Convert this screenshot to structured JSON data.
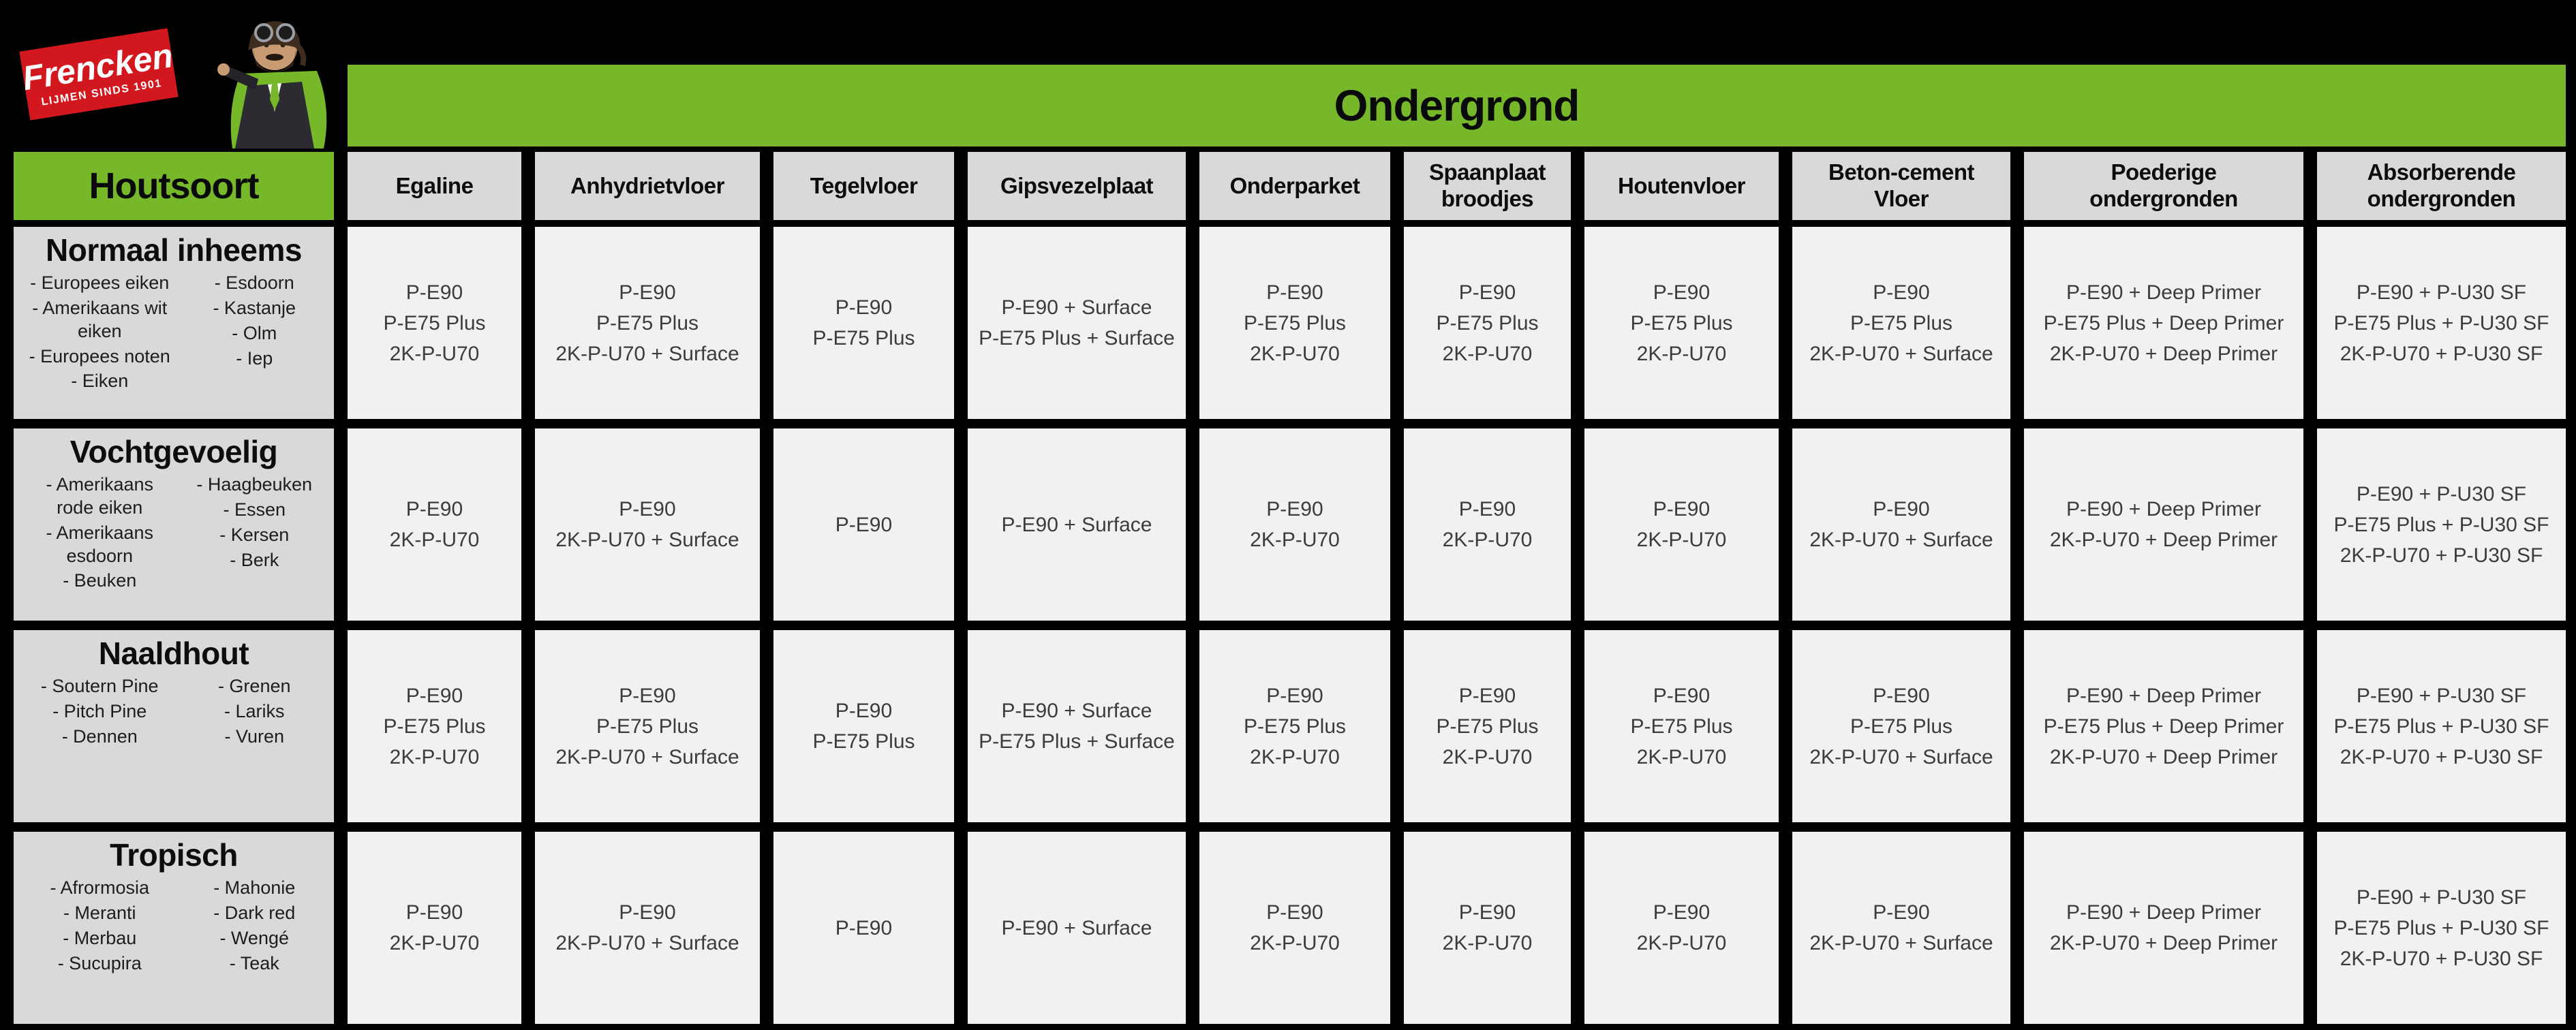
{
  "brand": {
    "logo_text": "Frencken",
    "logo_tagline": "LIJMEN SINDS 1901"
  },
  "header": {
    "ondergrond_title": "Ondergrond",
    "houtsoort_title": "Houtsoort"
  },
  "colors": {
    "green": "#76b82a",
    "logo_red": "#d2181e",
    "header_gray": "#d9d9d9",
    "cell_gray": "#f1f1f1",
    "background": "#000000"
  },
  "columns": [
    "Egaline",
    "Anhydrietvloer",
    "Tegelvloer",
    "Gipsvezelplaat",
    "Onderparket",
    "Spaanplaat\nbroodjes",
    "Houtenvloer",
    "Beton-cement\nVloer",
    "Poederige\nondergronden",
    "Absorberende\nondergronden"
  ],
  "rows": [
    {
      "category": "Normaal inheems",
      "woods_left": [
        "- Europees eiken",
        "- Amerikaans wit\neiken",
        "- Europees noten",
        "- Eiken"
      ],
      "woods_right": [
        "- Esdoorn",
        "- Kastanje",
        "- Olm",
        "- Iep"
      ],
      "cells": [
        [
          "P-E90",
          "P-E75 Plus",
          "2K-P-U70"
        ],
        [
          "P-E90",
          "P-E75 Plus",
          "2K-P-U70 + Surface"
        ],
        [
          "P-E90",
          "P-E75 Plus"
        ],
        [
          "P-E90 + Surface",
          "P-E75 Plus + Surface"
        ],
        [
          "P-E90",
          "P-E75 Plus",
          "2K-P-U70"
        ],
        [
          "P-E90",
          "P-E75 Plus",
          "2K-P-U70"
        ],
        [
          "P-E90",
          "P-E75 Plus",
          "2K-P-U70"
        ],
        [
          "P-E90",
          "P-E75 Plus",
          "2K-P-U70 + Surface"
        ],
        [
          "P-E90 + Deep Primer",
          "P-E75 Plus + Deep Primer",
          "2K-P-U70 + Deep Primer"
        ],
        [
          "P-E90 + P-U30 SF",
          "P-E75 Plus + P-U30 SF",
          "2K-P-U70 + P-U30 SF"
        ]
      ]
    },
    {
      "category": "Vochtgevoelig",
      "woods_left": [
        "- Amerikaans\nrode eiken",
        "- Amerikaans\nesdoorn",
        "- Beuken"
      ],
      "woods_right": [
        "- Haagbeuken",
        "- Essen",
        "- Kersen",
        "- Berk"
      ],
      "cells": [
        [
          "P-E90",
          "2K-P-U70"
        ],
        [
          "P-E90",
          "2K-P-U70 + Surface"
        ],
        [
          "P-E90"
        ],
        [
          "P-E90 + Surface"
        ],
        [
          "P-E90",
          "2K-P-U70"
        ],
        [
          "P-E90",
          "2K-P-U70"
        ],
        [
          "P-E90",
          "2K-P-U70"
        ],
        [
          "P-E90",
          "2K-P-U70 + Surface"
        ],
        [
          "P-E90 + Deep Primer",
          "2K-P-U70 + Deep Primer"
        ],
        [
          "P-E90 + P-U30 SF",
          "P-E75 Plus + P-U30 SF",
          "2K-P-U70 + P-U30 SF"
        ]
      ]
    },
    {
      "category": "Naaldhout",
      "woods_left": [
        "- Soutern Pine",
        "- Pitch Pine",
        "- Dennen"
      ],
      "woods_right": [
        "- Grenen",
        "- Lariks",
        "- Vuren"
      ],
      "cells": [
        [
          "P-E90",
          "P-E75 Plus",
          "2K-P-U70"
        ],
        [
          "P-E90",
          "P-E75 Plus",
          "2K-P-U70 + Surface"
        ],
        [
          "P-E90",
          "P-E75 Plus"
        ],
        [
          "P-E90 + Surface",
          "P-E75 Plus + Surface"
        ],
        [
          "P-E90",
          "P-E75 Plus",
          "2K-P-U70"
        ],
        [
          "P-E90",
          "P-E75 Plus",
          "2K-P-U70"
        ],
        [
          "P-E90",
          "P-E75 Plus",
          "2K-P-U70"
        ],
        [
          "P-E90",
          "P-E75 Plus",
          "2K-P-U70 + Surface"
        ],
        [
          "P-E90 + Deep Primer",
          "P-E75 Plus + Deep Primer",
          "2K-P-U70 + Deep Primer"
        ],
        [
          "P-E90 + P-U30 SF",
          "P-E75 Plus + P-U30 SF",
          "2K-P-U70 + P-U30 SF"
        ]
      ]
    },
    {
      "category": "Tropisch",
      "woods_left": [
        "- Afrormosia",
        "- Meranti",
        "- Merbau",
        "- Sucupira"
      ],
      "woods_right": [
        "- Mahonie",
        "- Dark red",
        "- Wengé",
        "- Teak"
      ],
      "cells": [
        [
          "P-E90",
          "2K-P-U70"
        ],
        [
          "P-E90",
          "2K-P-U70 + Surface"
        ],
        [
          "P-E90"
        ],
        [
          "P-E90 + Surface"
        ],
        [
          "P-E90",
          "2K-P-U70"
        ],
        [
          "P-E90",
          "2K-P-U70"
        ],
        [
          "P-E90",
          "2K-P-U70"
        ],
        [
          "P-E90",
          "2K-P-U70 + Surface"
        ],
        [
          "P-E90 + Deep Primer",
          "2K-P-U70 + Deep Primer"
        ],
        [
          "P-E90 + P-U30 SF",
          "P-E75 Plus + P-U30 SF",
          "2K-P-U70 + P-U30 SF"
        ]
      ]
    }
  ]
}
